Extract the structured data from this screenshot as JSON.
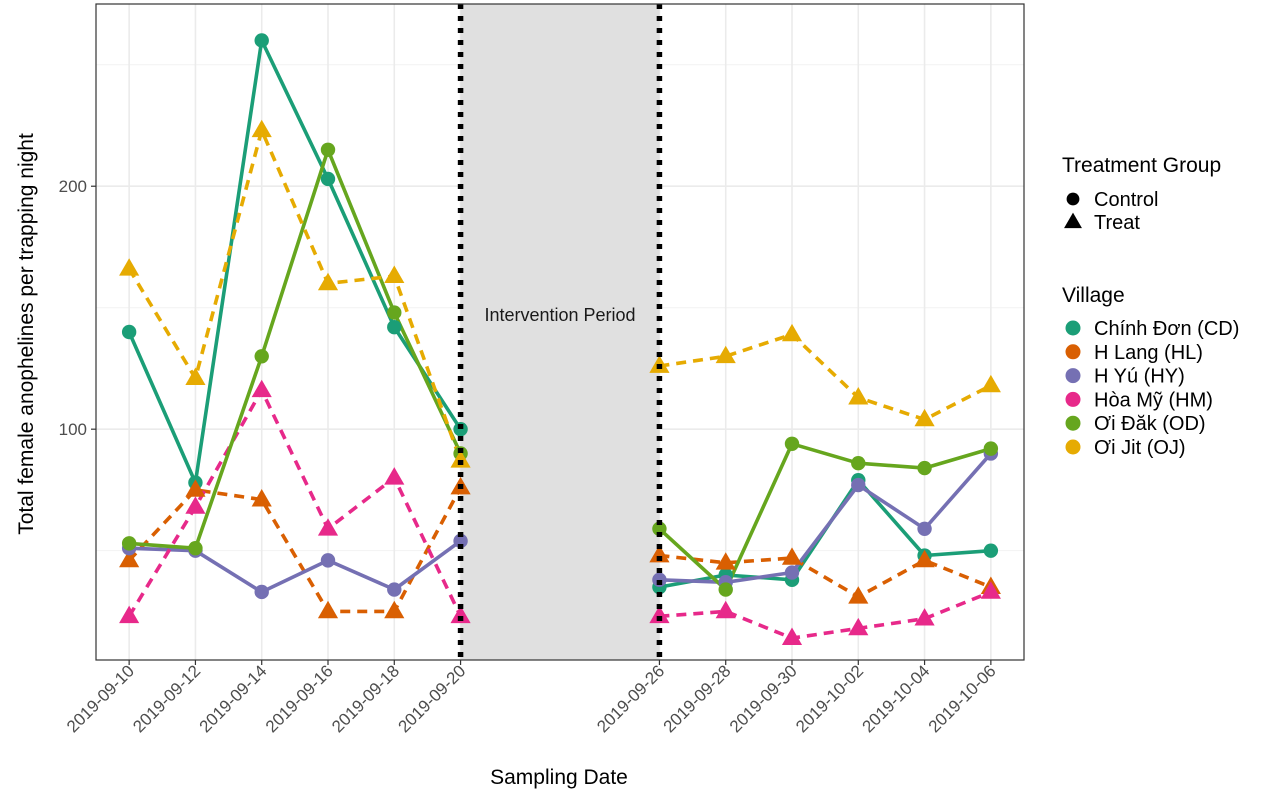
{
  "chart_data": {
    "type": "line",
    "xlabel": "Sampling Date",
    "ylabel": "Total female anophelines per trapping night",
    "ylim": [
      5,
      275
    ],
    "yticks": [
      100,
      200
    ],
    "x_ticks": [
      "2019-09-10",
      "2019-09-12",
      "2019-09-14",
      "2019-09-16",
      "2019-09-18",
      "2019-09-20",
      "2019-09-26",
      "2019-09-28",
      "2019-09-30",
      "2019-10-02",
      "2019-10-04",
      "2019-10-06"
    ],
    "xlim": [
      "2019-09-09",
      "2019-10-07"
    ],
    "intervention": {
      "start": "2019-09-20",
      "end": "2019-09-26",
      "label": "Intervention Period",
      "color": "#e0e0e0"
    },
    "grid": true,
    "legend_position": "right",
    "legend_shape": {
      "title": "Treatment Group",
      "items": [
        {
          "label": "Control",
          "shape": "circle"
        },
        {
          "label": "Treat",
          "shape": "triangle"
        }
      ]
    },
    "legend_color": {
      "title": "Village",
      "items": [
        {
          "label": "Chính Đơn (CD)",
          "color": "#1b9e77"
        },
        {
          "label": "H Lang (HL)",
          "color": "#d95f02"
        },
        {
          "label": "H Yú (HY)",
          "color": "#7570b3"
        },
        {
          "label": "Hòa Mỹ (HM)",
          "color": "#e7298a"
        },
        {
          "label": "Ơi Đăk (OD)",
          "color": "#66a61e"
        },
        {
          "label": "Ơi Jit (OJ)",
          "color": "#e6ab02"
        }
      ]
    },
    "series": [
      {
        "name": "Chính Đơn (CD)",
        "group": "Control",
        "shape": "circle",
        "dashed": false,
        "color": "#1b9e77",
        "segments": [
          {
            "x": [
              "2019-09-10",
              "2019-09-12",
              "2019-09-14",
              "2019-09-16",
              "2019-09-18",
              "2019-09-20"
            ],
            "y": [
              140,
              78,
              260,
              203,
              142,
              100
            ]
          },
          {
            "x": [
              "2019-09-26",
              "2019-09-28",
              "2019-09-30",
              "2019-10-02",
              "2019-10-04",
              "2019-10-06"
            ],
            "y": [
              35,
              40,
              38,
              79,
              48,
              50
            ]
          }
        ]
      },
      {
        "name": "H Lang (HL)",
        "group": "Treat",
        "shape": "triangle",
        "dashed": true,
        "color": "#d95f02",
        "segments": [
          {
            "x": [
              "2019-09-10",
              "2019-09-12",
              "2019-09-14",
              "2019-09-16",
              "2019-09-18",
              "2019-09-20"
            ],
            "y": [
              46,
              75,
              71,
              25,
              25,
              76
            ]
          },
          {
            "x": [
              "2019-09-26",
              "2019-09-28",
              "2019-09-30",
              "2019-10-02",
              "2019-10-04",
              "2019-10-06"
            ],
            "y": [
              48,
              45,
              47,
              31,
              46,
              35
            ]
          }
        ]
      },
      {
        "name": "H Yú (HY)",
        "group": "Control",
        "shape": "circle",
        "dashed": false,
        "color": "#7570b3",
        "segments": [
          {
            "x": [
              "2019-09-10",
              "2019-09-12",
              "2019-09-14",
              "2019-09-16",
              "2019-09-18",
              "2019-09-20"
            ],
            "y": [
              51,
              50,
              33,
              46,
              34,
              54
            ]
          },
          {
            "x": [
              "2019-09-26",
              "2019-09-28",
              "2019-09-30",
              "2019-10-02",
              "2019-10-04",
              "2019-10-06"
            ],
            "y": [
              38,
              37,
              41,
              77,
              59,
              90
            ]
          }
        ]
      },
      {
        "name": "Hòa Mỹ (HM)",
        "group": "Treat",
        "shape": "triangle",
        "dashed": true,
        "color": "#e7298a",
        "segments": [
          {
            "x": [
              "2019-09-10",
              "2019-09-12",
              "2019-09-14",
              "2019-09-16",
              "2019-09-18",
              "2019-09-20"
            ],
            "y": [
              23,
              68,
              116,
              59,
              80,
              23
            ]
          },
          {
            "x": [
              "2019-09-26",
              "2019-09-28",
              "2019-09-30",
              "2019-10-02",
              "2019-10-04",
              "2019-10-06"
            ],
            "y": [
              23,
              25,
              14,
              18,
              22,
              33
            ]
          }
        ]
      },
      {
        "name": "Ơi Đăk (OD)",
        "group": "Control",
        "shape": "circle",
        "dashed": false,
        "color": "#66a61e",
        "segments": [
          {
            "x": [
              "2019-09-10",
              "2019-09-12",
              "2019-09-14",
              "2019-09-16",
              "2019-09-18",
              "2019-09-20"
            ],
            "y": [
              53,
              51,
              130,
              215,
              148,
              90
            ]
          },
          {
            "x": [
              "2019-09-26",
              "2019-09-28",
              "2019-09-30",
              "2019-10-02",
              "2019-10-04",
              "2019-10-06"
            ],
            "y": [
              59,
              34,
              94,
              86,
              84,
              92
            ]
          }
        ]
      },
      {
        "name": "Ơi Jit (OJ)",
        "group": "Treat",
        "shape": "triangle",
        "dashed": true,
        "color": "#e6ab02",
        "segments": [
          {
            "x": [
              "2019-09-10",
              "2019-09-12",
              "2019-09-14",
              "2019-09-16",
              "2019-09-18",
              "2019-09-20"
            ],
            "y": [
              166,
              121,
              223,
              160,
              163,
              87
            ]
          },
          {
            "x": [
              "2019-09-26",
              "2019-09-28",
              "2019-09-30",
              "2019-10-02",
              "2019-10-04",
              "2019-10-06"
            ],
            "y": [
              126,
              130,
              139,
              113,
              104,
              118
            ]
          }
        ]
      }
    ]
  }
}
